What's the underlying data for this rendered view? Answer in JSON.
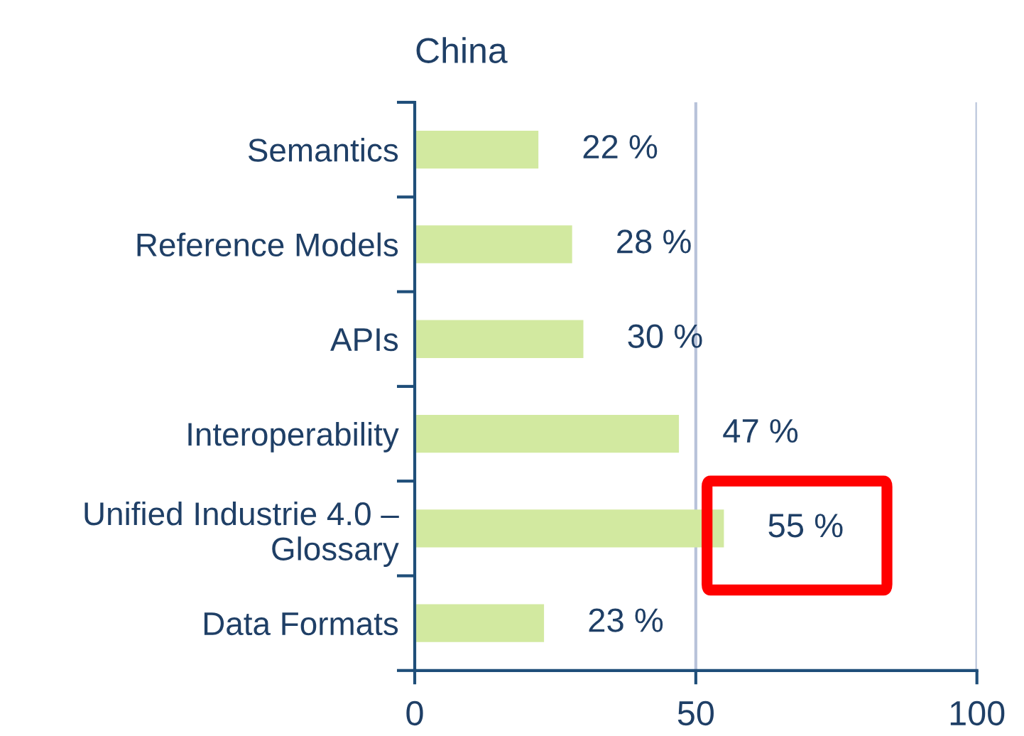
{
  "chart_data": {
    "type": "bar",
    "orientation": "horizontal",
    "title": "China",
    "categories": [
      "Semantics",
      "Reference Models",
      "APIs",
      "Interoperability",
      "Unified Industrie 4.0 –\nGlossary",
      "Data Formats"
    ],
    "values": [
      22,
      28,
      30,
      47,
      55,
      23
    ],
    "color": "#d2e9a0",
    "value_labels": [
      "22 %",
      "28 %",
      "30 %",
      "47 %",
      "55 %",
      "23 %"
    ],
    "xlim": [
      0,
      100
    ],
    "xticks": [
      0,
      50,
      100
    ],
    "grid": "x"
  }
}
